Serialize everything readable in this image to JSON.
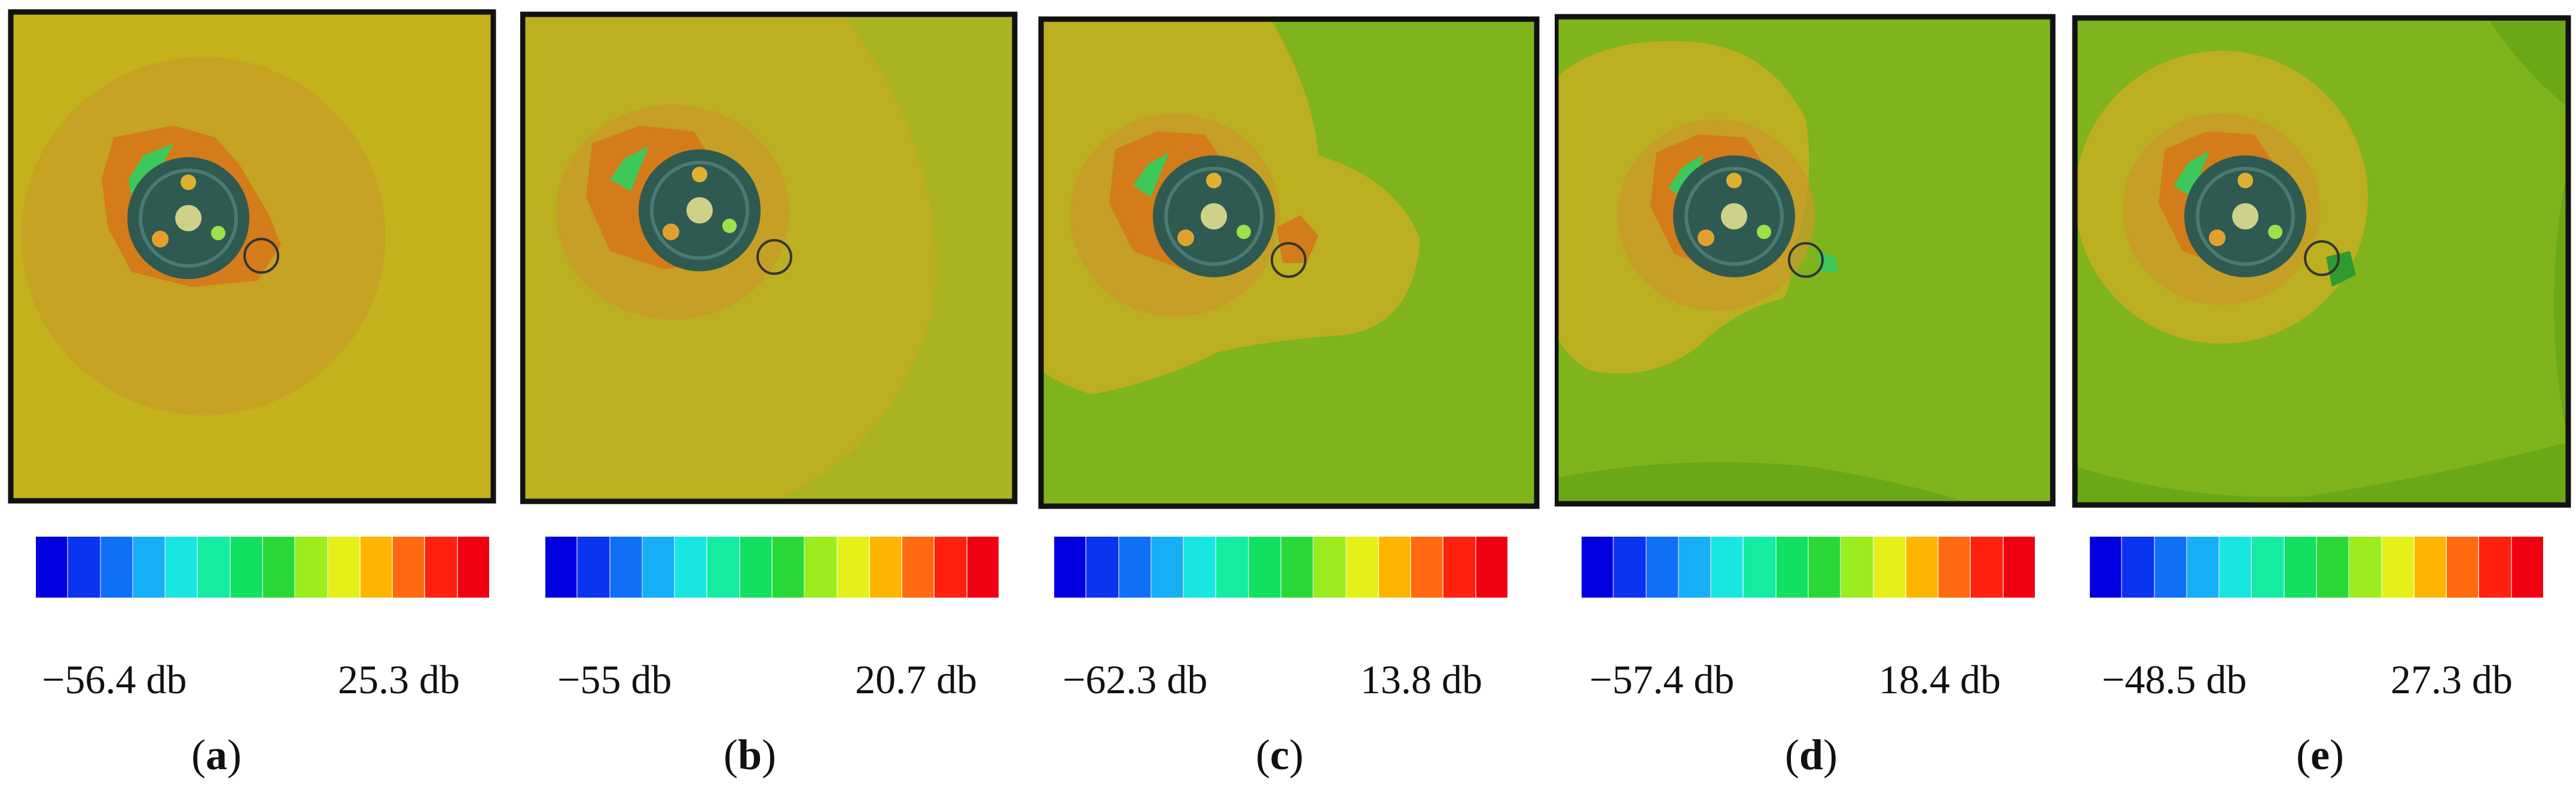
{
  "figure": {
    "palette": [
      "#0000e0",
      "#0a34f0",
      "#1070f5",
      "#16aef5",
      "#18e6e0",
      "#14eda0",
      "#12e060",
      "#2ad838",
      "#9bed1e",
      "#e6f018",
      "#ffb400",
      "#ff6a10",
      "#ff2010",
      "#f00010"
    ],
    "panels": [
      {
        "id": "a",
        "label": "a",
        "min_label": "−56.4 db",
        "max_label": "25.3 db"
      },
      {
        "id": "b",
        "label": "b",
        "min_label": "−55 db",
        "max_label": "20.7 db"
      },
      {
        "id": "c",
        "label": "c",
        "min_label": "−62.3 db",
        "max_label": "13.8 db"
      },
      {
        "id": "d",
        "label": "d",
        "min_label": "−57.4 db",
        "max_label": "18.4 db"
      },
      {
        "id": "e",
        "label": "e",
        "min_label": "−48.5 db",
        "max_label": "27.3 db"
      }
    ]
  }
}
